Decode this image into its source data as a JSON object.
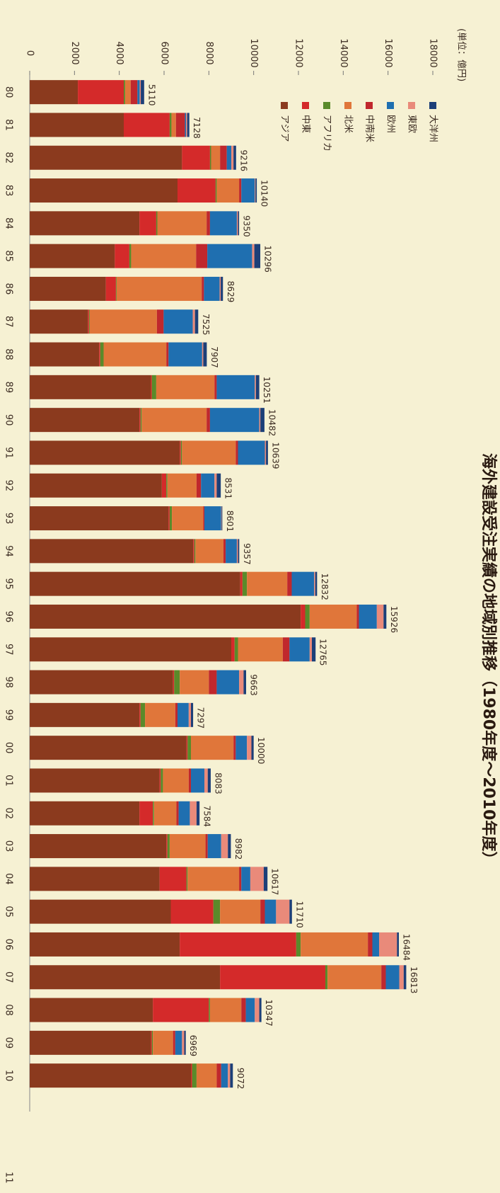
{
  "chart_data": {
    "type": "bar",
    "stacked": true,
    "title": "海外建設受注実績の地域別推移（1980年度～2010年度）",
    "unit_label": "(単位：億円)",
    "categories": [
      "80",
      "81",
      "82",
      "83",
      "84",
      "85",
      "86",
      "87",
      "88",
      "89",
      "90",
      "91",
      "92",
      "93",
      "94",
      "95",
      "96",
      "97",
      "98",
      "99",
      "00",
      "01",
      "02",
      "03",
      "04",
      "05",
      "06",
      "07",
      "08",
      "09",
      "10"
    ],
    "series": [
      {
        "name": "アジア",
        "color": "#8b3a1e",
        "values": [
          2150,
          4200,
          6800,
          6600,
          4900,
          3800,
          3400,
          2600,
          3100,
          5400,
          4900,
          6700,
          5900,
          6200,
          7300,
          9400,
          12100,
          9000,
          6400,
          4900,
          7000,
          5800,
          4900,
          6100,
          5800,
          6300,
          6700,
          8500,
          5500,
          5400,
          7200
        ]
      },
      {
        "name": "中東",
        "color": "#d42a2a",
        "values": [
          2050,
          2050,
          1250,
          1700,
          750,
          650,
          450,
          50,
          50,
          50,
          50,
          50,
          200,
          50,
          50,
          100,
          200,
          150,
          50,
          50,
          50,
          50,
          600,
          50,
          1200,
          1900,
          5200,
          4700,
          2500,
          50,
          50
        ]
      },
      {
        "name": "アフリカ",
        "color": "#5a8a2a",
        "values": [
          60,
          80,
          50,
          50,
          50,
          80,
          30,
          30,
          150,
          200,
          50,
          50,
          50,
          100,
          50,
          200,
          200,
          150,
          250,
          200,
          150,
          100,
          50,
          100,
          50,
          300,
          200,
          100,
          50,
          50,
          200
        ]
      },
      {
        "name": "北米",
        "color": "#e0763a",
        "values": [
          250,
          200,
          400,
          1000,
          2200,
          2900,
          3800,
          3000,
          2800,
          2600,
          2900,
          2400,
          1300,
          1400,
          1250,
          1800,
          2100,
          2000,
          1300,
          1350,
          1900,
          1150,
          1000,
          1600,
          2300,
          1800,
          3000,
          2400,
          1400,
          900,
          900
        ]
      },
      {
        "name": "中南米",
        "color": "#c0282d",
        "values": [
          300,
          400,
          300,
          100,
          150,
          500,
          100,
          300,
          100,
          100,
          150,
          100,
          200,
          50,
          100,
          200,
          100,
          300,
          350,
          100,
          100,
          100,
          100,
          100,
          100,
          200,
          200,
          200,
          200,
          100,
          200
        ]
      },
      {
        "name": "欧州",
        "color": "#1f6fb0",
        "values": [
          100,
          50,
          200,
          600,
          1200,
          2000,
          700,
          1300,
          1500,
          1700,
          2200,
          1200,
          600,
          750,
          500,
          1000,
          800,
          900,
          1000,
          500,
          500,
          600,
          500,
          600,
          400,
          500,
          300,
          600,
          400,
          300,
          300
        ]
      },
      {
        "name": "東欧",
        "color": "#e98a7a",
        "values": [
          50,
          50,
          100,
          30,
          50,
          100,
          50,
          100,
          50,
          50,
          50,
          50,
          100,
          20,
          50,
          50,
          300,
          100,
          200,
          100,
          200,
          150,
          300,
          300,
          600,
          600,
          800,
          200,
          200,
          100,
          100
        ]
      },
      {
        "name": "大洋州",
        "color": "#1c3f78",
        "values": [
          150,
          98,
          116,
          60,
          50,
          266,
          99,
          145,
          157,
          151,
          182,
          89,
          181,
          31,
          57,
          82,
          126,
          165,
          113,
          97,
          100,
          133,
          134,
          132,
          167,
          110,
          84,
          113,
          97,
          69,
          122
        ]
      }
    ],
    "totals": [
      5110,
      7128,
      9216,
      10140,
      9350,
      10296,
      8629,
      7525,
      7907,
      10251,
      10482,
      10639,
      8531,
      8601,
      9357,
      12832,
      15926,
      12765,
      9663,
      7297,
      10000,
      8083,
      7584,
      8982,
      10617,
      11710,
      16484,
      16813,
      10347,
      6969,
      9072
    ],
    "ylim": [
      0,
      18000
    ],
    "yticks": [
      0,
      2000,
      4000,
      6000,
      8000,
      10000,
      12000,
      14000,
      16000,
      18000
    ]
  },
  "page_number": "11"
}
